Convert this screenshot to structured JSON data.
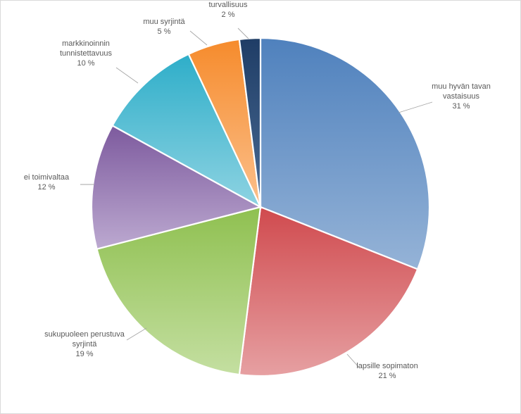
{
  "chart_data": {
    "type": "pie",
    "title": "",
    "start_angle_deg": 0,
    "direction": "clockwise",
    "slices": [
      {
        "name": "muu hyvän tavan vastaisuus",
        "lines": [
          "muu hyvän tavan",
          "vastaisuus"
        ],
        "value": 31,
        "label": "31 %",
        "color": "#4f81bd",
        "light": "#95b3d7"
      },
      {
        "name": "lapsille sopimaton",
        "lines": [
          "lapsille sopimaton"
        ],
        "value": 21,
        "label": "21 %",
        "color": "#d04a4e",
        "light": "#e6a0a2"
      },
      {
        "name": "sukupuoleen perustuva syrjintä",
        "lines": [
          "sukupuoleen perustuva",
          "syrjintä"
        ],
        "value": 19,
        "label": "19 %",
        "color": "#8fc050",
        "light": "#c4dfa1"
      },
      {
        "name": "ei toimivaltaa",
        "lines": [
          "ei toimivaltaa"
        ],
        "value": 12,
        "label": "12 %",
        "color": "#7d5a9e",
        "light": "#bca9d0"
      },
      {
        "name": "markkinoinnin tunnistettavuus",
        "lines": [
          "markkinoinnin",
          "tunnistettavuus"
        ],
        "value": 10,
        "label": "10 %",
        "color": "#2eaec9",
        "light": "#8ed3e2"
      },
      {
        "name": "muu syrjintä",
        "lines": [
          "muu syrjintä"
        ],
        "value": 5,
        "label": "5 %",
        "color": "#f68b2c",
        "light": "#fbc08c"
      },
      {
        "name": "turvallisuus",
        "lines": [
          "turvallisuus"
        ],
        "value": 2,
        "label": "2 %",
        "color": "#1f3d66",
        "light": "#4a6b94"
      }
    ],
    "legend": "none",
    "labels": "outside with leader lines"
  }
}
